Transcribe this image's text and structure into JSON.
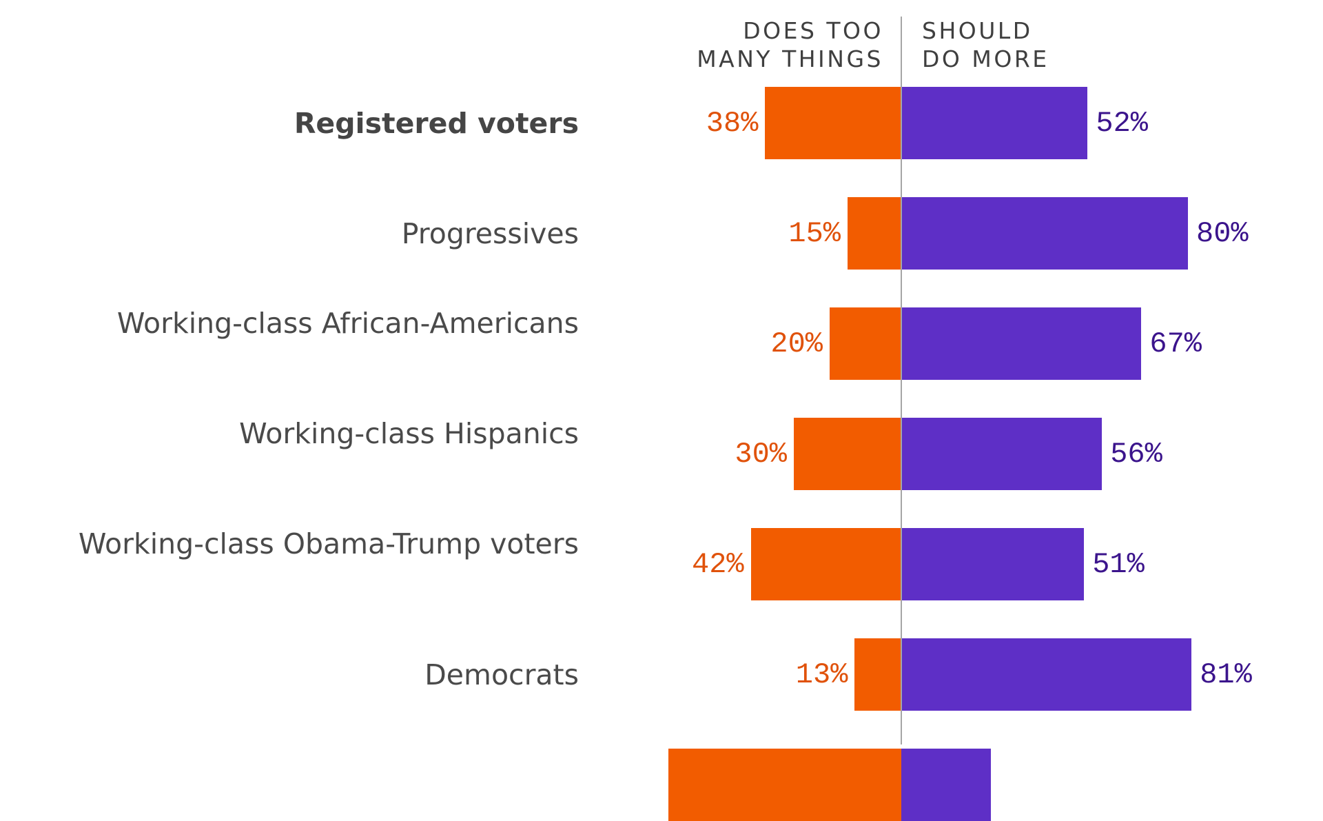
{
  "chart_data": {
    "type": "bar",
    "orientation": "horizontal-diverging",
    "title": "",
    "xlabel": "",
    "ylabel": "",
    "legend": {
      "left_header": "DOES TOO\nMANY THINGS",
      "right_header": "SHOULD\nDO MORE"
    },
    "categories": [
      "Registered voters",
      "Progressives",
      "Working-class African-Americans",
      "Working-class Hispanics",
      "Working-class Obama-Trump voters",
      "Democrats",
      ""
    ],
    "highlight_category": "Registered voters",
    "series": [
      {
        "name": "Does too many things",
        "color": "#f25c00",
        "label_color": "#e0520b",
        "values": [
          38,
          15,
          20,
          30,
          42,
          13,
          65
        ],
        "labels": [
          "38%",
          "15%",
          "20%",
          "30%",
          "42%",
          "13%",
          ""
        ]
      },
      {
        "name": "Should do more",
        "color": "#5e2fc6",
        "label_color": "#3b148c",
        "values": [
          52,
          80,
          67,
          56,
          51,
          81,
          25
        ],
        "labels": [
          "52%",
          "80%",
          "67%",
          "56%",
          "51%",
          "81%",
          ""
        ]
      }
    ],
    "xlim": [
      -100,
      100
    ],
    "grid": false,
    "notes": "Seventh row is cut off at the bottom edge; its category and labels are not visible, values estimated from bar lengths."
  }
}
